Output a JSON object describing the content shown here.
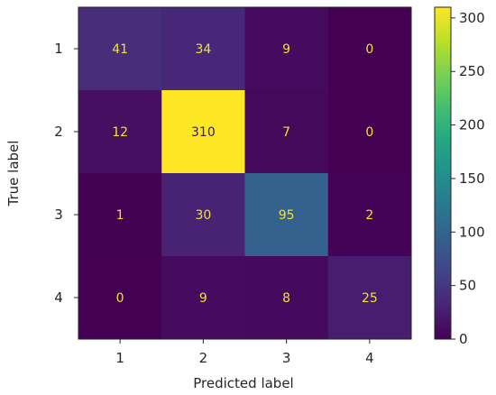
{
  "chart_data": {
    "type": "heatmap",
    "title": "",
    "xlabel": "Predicted label",
    "ylabel": "True label",
    "x_categories": [
      "1",
      "2",
      "3",
      "4"
    ],
    "y_categories": [
      "1",
      "2",
      "3",
      "4"
    ],
    "values": [
      [
        41,
        34,
        9,
        0
      ],
      [
        12,
        310,
        7,
        0
      ],
      [
        1,
        30,
        95,
        2
      ],
      [
        0,
        9,
        8,
        25
      ]
    ],
    "colormap": "viridis",
    "colorbar": {
      "range": [
        0,
        310
      ],
      "ticks": [
        0,
        50,
        100,
        150,
        200,
        250,
        300
      ],
      "tick_labels": [
        "0",
        "50",
        "100",
        "150",
        "200",
        "250",
        "300"
      ]
    },
    "grid": false,
    "legend": "colorbar-right"
  }
}
